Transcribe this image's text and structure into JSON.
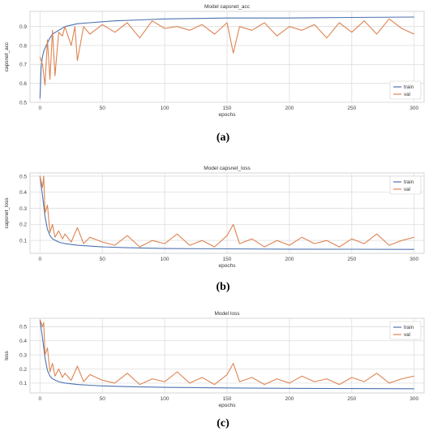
{
  "captions": [
    "(a)",
    "(b)",
    "(c)"
  ],
  "chart_data": [
    {
      "type": "line",
      "title": "Model capsnet_acc",
      "xlabel": "epochs",
      "ylabel": "capsnet_acc",
      "xlim": [
        -8,
        308
      ],
      "ylim": [
        0.5,
        0.98
      ],
      "xticks": [
        0,
        50,
        100,
        150,
        200,
        250,
        300
      ],
      "yticks": [
        0.5,
        0.6,
        0.7,
        0.8,
        0.9
      ],
      "ytick_labels": [
        "0.5",
        "0.6",
        "0.7",
        "0.8",
        "0.9"
      ],
      "grid": true,
      "legend_position": "bottom-right",
      "series": [
        {
          "name": "train",
          "color": "#4c72b0",
          "x": [
            0,
            1,
            2,
            3,
            5,
            8,
            10,
            15,
            20,
            30,
            40,
            50,
            60,
            80,
            100,
            150,
            200,
            250,
            300
          ],
          "values": [
            0.52,
            0.69,
            0.74,
            0.77,
            0.8,
            0.84,
            0.86,
            0.88,
            0.9,
            0.915,
            0.92,
            0.925,
            0.93,
            0.935,
            0.94,
            0.945,
            0.945,
            0.948,
            0.95
          ]
        },
        {
          "name": "val",
          "color": "#dd8452",
          "x": [
            0,
            2,
            4,
            6,
            8,
            10,
            12,
            15,
            18,
            20,
            25,
            28,
            30,
            35,
            40,
            50,
            60,
            70,
            80,
            90,
            100,
            110,
            120,
            130,
            140,
            150,
            155,
            160,
            170,
            180,
            190,
            200,
            210,
            220,
            230,
            240,
            250,
            260,
            270,
            280,
            290,
            300
          ],
          "values": [
            0.74,
            0.7,
            0.59,
            0.83,
            0.62,
            0.88,
            0.64,
            0.87,
            0.85,
            0.9,
            0.8,
            0.9,
            0.72,
            0.9,
            0.86,
            0.91,
            0.87,
            0.92,
            0.84,
            0.93,
            0.89,
            0.9,
            0.88,
            0.91,
            0.86,
            0.92,
            0.76,
            0.9,
            0.88,
            0.92,
            0.85,
            0.9,
            0.88,
            0.91,
            0.84,
            0.92,
            0.87,
            0.93,
            0.86,
            0.94,
            0.89,
            0.86
          ]
        }
      ]
    },
    {
      "type": "line",
      "title": "Model capsnet_loss",
      "xlabel": "epochs",
      "ylabel": "capsnet_loss",
      "xlim": [
        -8,
        308
      ],
      "ylim": [
        0.02,
        0.52
      ],
      "xticks": [
        0,
        50,
        100,
        150,
        200,
        250,
        300
      ],
      "yticks": [
        0.1,
        0.2,
        0.3,
        0.4,
        0.5
      ],
      "ytick_labels": [
        "0.1",
        "0.2",
        "0.3",
        "0.4",
        "0.5"
      ],
      "grid": true,
      "legend_position": "top-right",
      "series": [
        {
          "name": "train",
          "color": "#4c72b0",
          "x": [
            0,
            2,
            4,
            6,
            8,
            10,
            15,
            20,
            30,
            40,
            50,
            70,
            100,
            150,
            200,
            250,
            300
          ],
          "values": [
            0.5,
            0.38,
            0.25,
            0.17,
            0.13,
            0.11,
            0.09,
            0.08,
            0.07,
            0.065,
            0.06,
            0.055,
            0.05,
            0.048,
            0.046,
            0.045,
            0.044
          ]
        },
        {
          "name": "val",
          "color": "#dd8452",
          "x": [
            0,
            2,
            3,
            4,
            6,
            8,
            10,
            12,
            15,
            18,
            20,
            25,
            30,
            35,
            40,
            50,
            60,
            70,
            80,
            90,
            100,
            110,
            120,
            130,
            140,
            150,
            155,
            160,
            170,
            180,
            190,
            200,
            210,
            220,
            230,
            240,
            250,
            260,
            270,
            280,
            290,
            300
          ],
          "values": [
            0.5,
            0.43,
            0.5,
            0.27,
            0.32,
            0.15,
            0.2,
            0.12,
            0.16,
            0.11,
            0.14,
            0.09,
            0.18,
            0.08,
            0.12,
            0.09,
            0.07,
            0.13,
            0.06,
            0.1,
            0.08,
            0.14,
            0.07,
            0.1,
            0.06,
            0.13,
            0.2,
            0.08,
            0.11,
            0.06,
            0.1,
            0.07,
            0.12,
            0.08,
            0.1,
            0.06,
            0.11,
            0.08,
            0.14,
            0.07,
            0.1,
            0.12
          ]
        }
      ]
    },
    {
      "type": "line",
      "title": "Model loss",
      "xlabel": "epochs",
      "ylabel": "loss",
      "xlim": [
        -8,
        308
      ],
      "ylim": [
        0.03,
        0.56
      ],
      "xticks": [
        0,
        50,
        100,
        150,
        200,
        250,
        300
      ],
      "yticks": [
        0.1,
        0.2,
        0.3,
        0.4,
        0.5
      ],
      "ytick_labels": [
        "0.1",
        "0.2",
        "0.3",
        "0.4",
        "0.5"
      ],
      "grid": true,
      "legend_position": "top-right",
      "series": [
        {
          "name": "train",
          "color": "#4c72b0",
          "x": [
            0,
            2,
            4,
            6,
            8,
            10,
            15,
            20,
            30,
            40,
            50,
            70,
            100,
            150,
            200,
            250,
            300
          ],
          "values": [
            0.55,
            0.42,
            0.28,
            0.19,
            0.15,
            0.13,
            0.11,
            0.1,
            0.09,
            0.085,
            0.08,
            0.075,
            0.07,
            0.066,
            0.063,
            0.061,
            0.06
          ]
        },
        {
          "name": "val",
          "color": "#dd8452",
          "x": [
            0,
            2,
            3,
            4,
            6,
            8,
            10,
            12,
            15,
            18,
            20,
            25,
            30,
            35,
            40,
            50,
            60,
            70,
            80,
            90,
            100,
            110,
            120,
            130,
            140,
            150,
            155,
            160,
            170,
            180,
            190,
            200,
            210,
            220,
            230,
            240,
            250,
            260,
            270,
            280,
            290,
            300
          ],
          "values": [
            0.55,
            0.5,
            0.53,
            0.3,
            0.35,
            0.18,
            0.24,
            0.15,
            0.2,
            0.14,
            0.17,
            0.12,
            0.22,
            0.11,
            0.16,
            0.12,
            0.1,
            0.17,
            0.09,
            0.13,
            0.11,
            0.18,
            0.1,
            0.14,
            0.09,
            0.16,
            0.24,
            0.11,
            0.14,
            0.09,
            0.13,
            0.1,
            0.15,
            0.11,
            0.13,
            0.09,
            0.14,
            0.11,
            0.17,
            0.1,
            0.13,
            0.15
          ]
        }
      ]
    }
  ]
}
